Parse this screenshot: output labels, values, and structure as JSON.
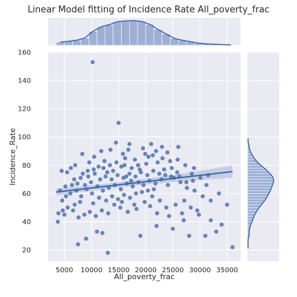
{
  "colors": {
    "background": "#eaeaf2",
    "grid": "#ffffff",
    "point": "#4c72b0",
    "line": "#3b63a8",
    "band": "#b8c4dd",
    "hist_bar": "#9db0d4"
  },
  "chart_data": {
    "type": "scatter",
    "title": "Linear Model fitting of Incidence Rate All_poverty_frac",
    "xlabel": "All_poverty_frac",
    "ylabel": "Incidence_Rate",
    "xlim": [
      2000,
      37500
    ],
    "ylim": [
      12,
      160
    ],
    "xticks": [
      5000,
      10000,
      15000,
      20000,
      25000,
      30000,
      35000
    ],
    "yticks": [
      20,
      40,
      60,
      80,
      100,
      120,
      140,
      160
    ],
    "grid": true,
    "regression": {
      "x": [
        3500,
        36000
      ],
      "y": [
        61,
        75.5
      ]
    },
    "marginal_x_hist": {
      "bin_edges": [
        3500,
        5000,
        6500,
        8000,
        9500,
        11000,
        12500,
        14000,
        15500,
        17000,
        18500,
        20000,
        21500,
        23000,
        24500,
        26000,
        27500,
        29000,
        30500,
        32000,
        33500,
        35000,
        36500
      ],
      "counts": [
        9,
        11,
        14,
        20,
        38,
        50,
        56,
        64,
        66,
        67,
        65,
        57,
        43,
        31,
        19,
        14,
        10,
        6,
        4,
        3,
        2,
        1
      ]
    },
    "marginal_y_hist": {
      "bin_edges": [
        20,
        22,
        24,
        26,
        28,
        30,
        32,
        34,
        36,
        38,
        40,
        42,
        44,
        46,
        48,
        50,
        52,
        54,
        56,
        58,
        60,
        62,
        64,
        66,
        68,
        70,
        72,
        74,
        76,
        78,
        80,
        82,
        84,
        86,
        88,
        90,
        92,
        94,
        96,
        98,
        100
      ],
      "counts": [
        1,
        1,
        1,
        1,
        2,
        3,
        3,
        4,
        5,
        7,
        9,
        11,
        13,
        16,
        19,
        23,
        27,
        31,
        34,
        37,
        40,
        42,
        44,
        46,
        47,
        46,
        43,
        38,
        33,
        27,
        21,
        16,
        12,
        9,
        6,
        4,
        3,
        2,
        1,
        1
      ]
    },
    "points": [
      [
        10200,
        153
      ],
      [
        15000,
        110
      ],
      [
        36000,
        22
      ],
      [
        13000,
        18
      ],
      [
        7500,
        24
      ],
      [
        31000,
        30
      ],
      [
        34000,
        38
      ],
      [
        3800,
        40
      ],
      [
        33000,
        33
      ],
      [
        28000,
        30
      ],
      [
        25000,
        35
      ],
      [
        9000,
        28
      ],
      [
        11000,
        33
      ],
      [
        12000,
        32
      ],
      [
        19000,
        30
      ],
      [
        22000,
        37
      ],
      [
        5000,
        45
      ],
      [
        27000,
        41
      ],
      [
        29500,
        48
      ],
      [
        32000,
        41
      ],
      [
        26000,
        93
      ],
      [
        23000,
        93
      ],
      [
        17000,
        95
      ],
      [
        21000,
        95
      ],
      [
        14500,
        96
      ],
      [
        15800,
        88
      ],
      [
        16800,
        91
      ],
      [
        19500,
        92
      ],
      [
        10500,
        86
      ],
      [
        8300,
        88
      ],
      [
        24000,
        89
      ],
      [
        20500,
        86
      ],
      [
        21300,
        87
      ],
      [
        13500,
        91
      ],
      [
        11800,
        90
      ],
      [
        16200,
        85
      ],
      [
        18000,
        84
      ],
      [
        12400,
        83
      ],
      [
        9600,
        82
      ],
      [
        7000,
        80
      ],
      [
        6200,
        78
      ],
      [
        5500,
        75
      ],
      [
        4500,
        76
      ],
      [
        6800,
        70
      ],
      [
        8000,
        71
      ],
      [
        12900,
        75
      ],
      [
        14000,
        76
      ],
      [
        15500,
        79
      ],
      [
        18600,
        80
      ],
      [
        20100,
        81
      ],
      [
        22200,
        82
      ],
      [
        23400,
        77
      ],
      [
        24800,
        78
      ],
      [
        26200,
        72
      ],
      [
        27500,
        68
      ],
      [
        28500,
        74
      ],
      [
        29000,
        62
      ],
      [
        30500,
        58
      ],
      [
        32000,
        55
      ],
      [
        33500,
        60
      ],
      [
        35000,
        52
      ],
      [
        31200,
        66
      ],
      [
        27100,
        55
      ],
      [
        25500,
        52
      ],
      [
        23800,
        50
      ],
      [
        22600,
        55
      ],
      [
        21200,
        58
      ],
      [
        19800,
        54
      ],
      [
        18300,
        49
      ],
      [
        16700,
        47
      ],
      [
        15300,
        50
      ],
      [
        14200,
        52
      ],
      [
        13100,
        46
      ],
      [
        11900,
        48
      ],
      [
        10800,
        44
      ],
      [
        9700,
        47
      ],
      [
        8700,
        45
      ],
      [
        7600,
        43
      ],
      [
        6600,
        48
      ],
      [
        5600,
        50
      ],
      [
        4600,
        55
      ],
      [
        4200,
        62
      ],
      [
        5200,
        65
      ],
      [
        6100,
        60
      ],
      [
        7200,
        62
      ],
      [
        8100,
        58
      ],
      [
        9100,
        63
      ],
      [
        10100,
        60
      ],
      [
        11100,
        65
      ],
      [
        12100,
        62
      ],
      [
        13200,
        64
      ],
      [
        14300,
        66
      ],
      [
        15400,
        63
      ],
      [
        16500,
        67
      ],
      [
        17600,
        65
      ],
      [
        18700,
        68
      ],
      [
        19600,
        66
      ],
      [
        20700,
        69
      ],
      [
        21800,
        67
      ],
      [
        22900,
        70
      ],
      [
        24100,
        66
      ],
      [
        25200,
        71
      ],
      [
        26400,
        68
      ],
      [
        27600,
        64
      ],
      [
        28700,
        69
      ],
      [
        30100,
        71
      ],
      [
        31500,
        73
      ],
      [
        9400,
        72
      ],
      [
        10600,
        74
      ],
      [
        11600,
        70
      ],
      [
        12600,
        72
      ],
      [
        13700,
        70
      ],
      [
        14800,
        73
      ],
      [
        15900,
        71
      ],
      [
        17000,
        74
      ],
      [
        18100,
        72
      ],
      [
        19100,
        75
      ],
      [
        20300,
        73
      ],
      [
        21400,
        76
      ],
      [
        22500,
        74
      ],
      [
        23600,
        73
      ],
      [
        24700,
        72
      ],
      [
        25800,
        75
      ],
      [
        8800,
        66
      ],
      [
        9900,
        68
      ],
      [
        11400,
        57
      ],
      [
        12700,
        55
      ],
      [
        13800,
        58
      ],
      [
        14900,
        56
      ],
      [
        16000,
        59
      ],
      [
        17100,
        57
      ],
      [
        18200,
        60
      ],
      [
        19300,
        61
      ],
      [
        20400,
        62
      ],
      [
        21500,
        63
      ],
      [
        17400,
        78
      ],
      [
        16100,
        80
      ],
      [
        14600,
        82
      ],
      [
        13400,
        80
      ],
      [
        12200,
        78
      ],
      [
        11300,
        79
      ],
      [
        10400,
        77
      ],
      [
        9300,
        76
      ],
      [
        8400,
        74
      ],
      [
        7400,
        67
      ],
      [
        6400,
        66
      ],
      [
        5300,
        58
      ],
      [
        4700,
        48
      ],
      [
        3900,
        46
      ],
      [
        6900,
        52
      ],
      [
        7900,
        54
      ],
      [
        10300,
        53
      ],
      [
        15600,
        54
      ],
      [
        17900,
        52
      ],
      [
        20800,
        51
      ],
      [
        22100,
        46
      ],
      [
        24300,
        44
      ],
      [
        26700,
        46
      ],
      [
        28300,
        50
      ],
      [
        29800,
        45
      ],
      [
        16400,
        72
      ],
      [
        17300,
        69
      ],
      [
        18900,
        77
      ],
      [
        19900,
        88
      ],
      [
        21900,
        90
      ],
      [
        23100,
        85
      ],
      [
        24500,
        83
      ],
      [
        25900,
        84
      ],
      [
        27300,
        80
      ],
      [
        28900,
        78
      ]
    ]
  }
}
